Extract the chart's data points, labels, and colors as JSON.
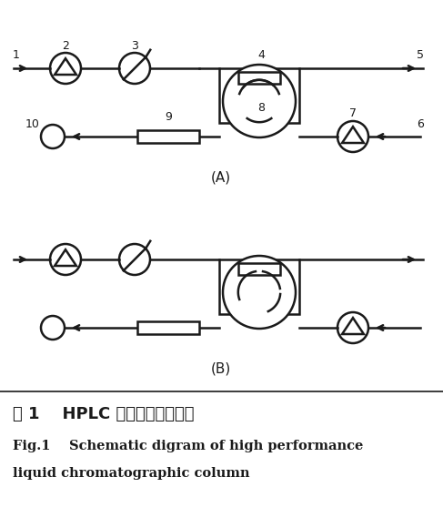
{
  "title_zh": "图 1    HPLC 柱切换系统流程图",
  "title_en1": "Fig.1    Schematic digram of high performance",
  "title_en2": "liquid chromatographic column",
  "label_A": "(A)",
  "label_B": "(B)",
  "bg_color": "#ffffff",
  "line_color": "#1a1a1a",
  "fig_width": 4.87,
  "fig_height": 5.8,
  "fig_dpi": 100
}
